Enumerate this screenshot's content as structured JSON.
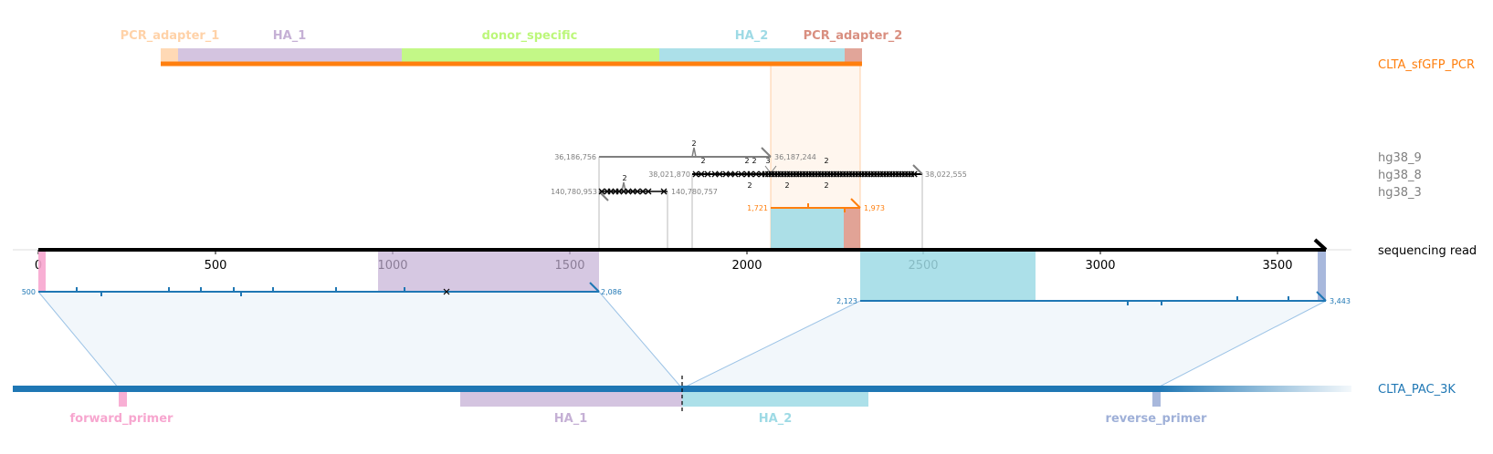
{
  "colors": {
    "read": "#000000",
    "pac": "#1f77b4",
    "pcr": "#ff7f0e",
    "hg38": "#7f7f7f",
    "ha1": "#c5b0d5",
    "ha2": "#9edae5",
    "donor": "#bcf77a",
    "adapter1": "#ffd2a8",
    "adapter2": "#d98f80",
    "forward_primer": "#f7a6cf",
    "reverse_primer": "#9fb0d8"
  },
  "references": {
    "pcr": "CLTA_sfGFP_PCR",
    "hg38_9": "hg38_9",
    "hg38_8": "hg38_8",
    "hg38_3": "hg38_3",
    "read": "sequencing read",
    "pac": "CLTA_PAC_3K"
  },
  "top_features": {
    "adapter1": "PCR_adapter_1",
    "ha1": "HA_1",
    "donor": "donor_specific",
    "ha2": "HA_2",
    "adapter2": "PCR_adapter_2"
  },
  "bottom_features": {
    "forward_primer": "forward_primer",
    "ha1": "HA_1",
    "ha2": "HA_2",
    "reverse_primer": "reverse_primer"
  },
  "read_axis": {
    "ticks": [
      "0",
      "500",
      "1000",
      "1500",
      "2000",
      "2500",
      "3000",
      "3500"
    ]
  },
  "alignment_labels": {
    "hg38_9_start": "36,186,756",
    "hg38_9_end": "36,187,244",
    "hg38_8_start": "38,021,870",
    "hg38_8_end": "38,022,555",
    "hg38_3_start": "140,780,953",
    "hg38_3_end": "140,780,757",
    "pcr_start": "1,721",
    "pcr_end": "1,973",
    "pac1_start": "500",
    "pac1_end": "2,086",
    "pac2_start": "2,123",
    "pac2_end": "3,443",
    "indel_2": "2",
    "indel_3": "3"
  }
}
